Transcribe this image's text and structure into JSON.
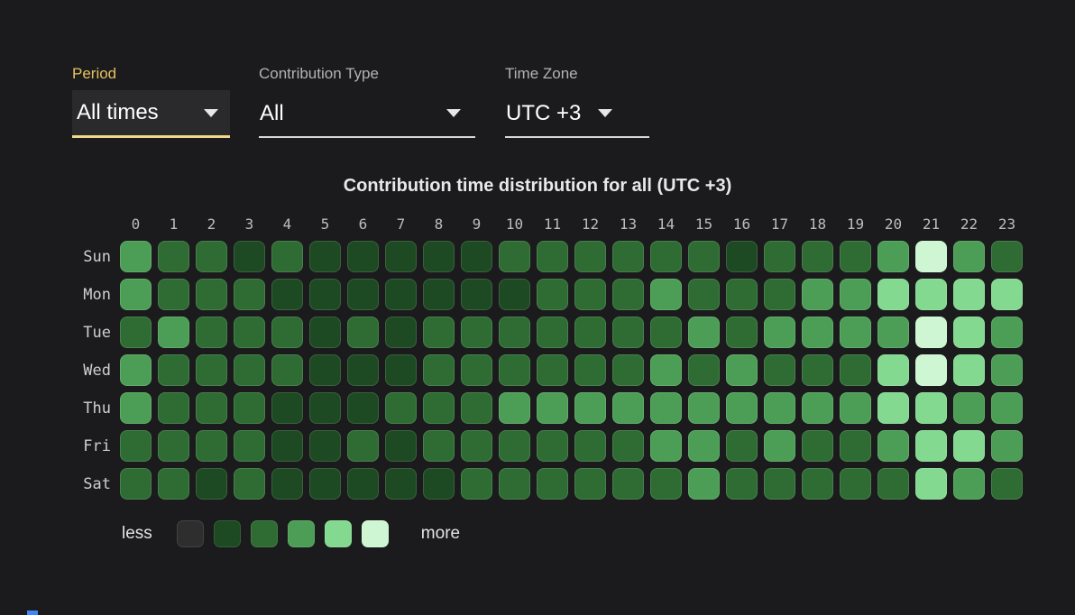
{
  "window": {
    "background": "#1b1b1d"
  },
  "filters": {
    "period": {
      "label": "Period",
      "value": "All times",
      "accent_text": "#e5c15e",
      "accent_underline": "#f2d78d"
    },
    "contribution_type": {
      "label": "Contribution Type",
      "value": "All"
    },
    "time_zone": {
      "label": "Time Zone",
      "value": "UTC +3"
    }
  },
  "chart_data": {
    "type": "heatmap",
    "title": "Contribution time distribution for all (UTC +3)",
    "x_labels": [
      "0",
      "1",
      "2",
      "3",
      "4",
      "5",
      "6",
      "7",
      "8",
      "9",
      "10",
      "11",
      "12",
      "13",
      "14",
      "15",
      "16",
      "17",
      "18",
      "19",
      "20",
      "21",
      "22",
      "23"
    ],
    "y_labels": [
      "Sun",
      "Mon",
      "Tue",
      "Wed",
      "Thu",
      "Fri",
      "Sat"
    ],
    "value_scale": "intensity level, 0 = less ... 5 = more",
    "palette": [
      "#2e2e2e",
      "#1d4a22",
      "#2e6c33",
      "#4c9e56",
      "#83d98f",
      "#cef6d3"
    ],
    "values": [
      [
        3,
        2,
        2,
        1,
        2,
        1,
        1,
        1,
        1,
        1,
        2,
        2,
        2,
        2,
        2,
        2,
        1,
        2,
        2,
        2,
        3,
        5,
        3,
        2
      ],
      [
        3,
        2,
        2,
        2,
        1,
        1,
        1,
        1,
        1,
        1,
        1,
        2,
        2,
        2,
        3,
        2,
        2,
        2,
        3,
        3,
        4,
        4,
        4,
        4
      ],
      [
        2,
        3,
        2,
        2,
        2,
        1,
        2,
        1,
        2,
        2,
        2,
        2,
        2,
        2,
        2,
        3,
        2,
        3,
        3,
        3,
        3,
        5,
        4,
        3
      ],
      [
        3,
        2,
        2,
        2,
        2,
        1,
        1,
        1,
        2,
        2,
        2,
        2,
        2,
        2,
        3,
        2,
        3,
        2,
        2,
        2,
        4,
        5,
        4,
        3
      ],
      [
        3,
        2,
        2,
        2,
        1,
        1,
        1,
        2,
        2,
        2,
        3,
        3,
        3,
        3,
        3,
        3,
        3,
        3,
        3,
        3,
        4,
        4,
        3,
        3
      ],
      [
        2,
        2,
        2,
        2,
        1,
        1,
        2,
        1,
        2,
        2,
        2,
        2,
        2,
        2,
        3,
        3,
        2,
        3,
        2,
        2,
        3,
        4,
        4,
        3
      ],
      [
        2,
        2,
        1,
        2,
        1,
        1,
        1,
        1,
        1,
        2,
        2,
        2,
        2,
        2,
        2,
        3,
        2,
        2,
        2,
        2,
        2,
        4,
        3,
        2
      ]
    ],
    "legend": {
      "less_label": "less",
      "more_label": "more",
      "levels": 6,
      "position": "bottom-left"
    }
  }
}
